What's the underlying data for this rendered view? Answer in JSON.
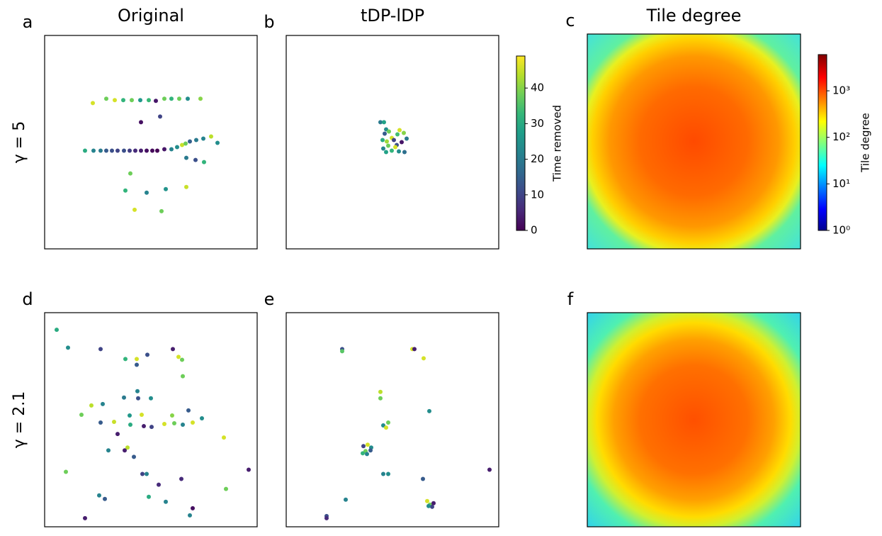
{
  "chart_data": [
    {
      "type": "scatter",
      "panel": "a",
      "title": "Original",
      "ylabel": "γ = 5",
      "xlim": [
        0,
        300
      ],
      "ylim": [
        0,
        300
      ],
      "x": [
        68,
        87,
        99,
        111,
        123,
        135,
        147,
        157,
        169,
        179,
        190,
        202,
        220,
        163,
        136,
        57,
        69,
        79,
        87,
        95,
        103,
        112,
        120,
        128,
        136,
        144,
        152,
        159,
        169,
        179,
        187,
        194,
        199,
        205,
        214,
        224,
        235,
        244,
        200,
        213,
        225,
        121,
        114,
        144,
        171,
        200,
        127,
        165
      ],
      "y": [
        205,
        211,
        209,
        209,
        209,
        209,
        209,
        208,
        211,
        211,
        211,
        211,
        211,
        186,
        178,
        138,
        138,
        138,
        138,
        138,
        138,
        138,
        138,
        138,
        138,
        138,
        138,
        138,
        140,
        140,
        143,
        146,
        148,
        151,
        153,
        155,
        158,
        149,
        128,
        125,
        122,
        106,
        82,
        79,
        84,
        87,
        55,
        53
      ],
      "c": [
        46,
        38,
        46,
        32,
        38,
        26,
        33,
        3,
        38,
        32,
        38,
        24,
        40,
        10,
        2,
        30,
        22,
        20,
        14,
        12,
        10,
        12,
        9,
        6,
        4,
        2,
        1,
        0,
        3,
        22,
        24,
        45,
        38,
        15,
        20,
        22,
        44,
        24,
        20,
        12,
        32,
        38,
        32,
        22,
        25,
        45,
        46,
        38
      ]
    },
    {
      "type": "scatter",
      "panel": "b",
      "title": "tDP-lDP",
      "xlim": [
        0,
        300
      ],
      "ylim": [
        0,
        300
      ],
      "x": [
        133,
        138,
        141,
        139,
        145,
        149,
        136,
        142,
        152,
        157,
        160,
        166,
        170,
        163,
        156,
        144,
        137,
        149,
        159,
        167,
        141,
        154
      ],
      "y": [
        178,
        178,
        168,
        162,
        165,
        156,
        153,
        151,
        153,
        161,
        167,
        163,
        155,
        150,
        146,
        145,
        141,
        138,
        137,
        136,
        136,
        143
      ],
      "c": [
        20,
        28,
        24,
        14,
        38,
        46,
        30,
        42,
        10,
        34,
        46,
        40,
        20,
        3,
        12,
        38,
        22,
        32,
        24,
        18,
        28,
        46
      ],
      "colorbar": {
        "label": "Time removed",
        "lim": [
          0,
          49
        ],
        "ticks": [
          0,
          10,
          20,
          30,
          40
        ]
      }
    },
    {
      "type": "heatmap",
      "panel": "c",
      "title": "Tile degree",
      "colorbar": {
        "label": "Tile degree",
        "log": true,
        "lim": [
          1,
          6000
        ],
        "ticks": [
          {
            "value": 1,
            "label": "10⁰"
          },
          {
            "value": 10,
            "label": "10¹"
          },
          {
            "value": 100,
            "label": "10²"
          },
          {
            "value": 1000,
            "label": "10³"
          }
        ]
      }
    },
    {
      "type": "scatter",
      "panel": "d",
      "ylabel": "γ = 2.1",
      "xlim": [
        0,
        300
      ],
      "ylim": [
        0,
        300
      ],
      "x": [
        17,
        33,
        79,
        145,
        181,
        189,
        194,
        114,
        130,
        130,
        195,
        131,
        112,
        132,
        150,
        66,
        82,
        52,
        203,
        120,
        137,
        180,
        98,
        79,
        121,
        140,
        151,
        169,
        183,
        195,
        209,
        222,
        103,
        253,
        117,
        113,
        90,
        126,
        138,
        144,
        30,
        193,
        161,
        288,
        256,
        147,
        77,
        85,
        171,
        209,
        205,
        57
      ],
      "y": [
        276,
        251,
        249,
        241,
        249,
        238,
        234,
        235,
        235,
        227,
        211,
        190,
        181,
        180,
        180,
        170,
        172,
        157,
        163,
        156,
        157,
        156,
        147,
        146,
        143,
        141,
        140,
        144,
        145,
        143,
        146,
        152,
        130,
        125,
        111,
        107,
        107,
        98,
        74,
        74,
        77,
        67,
        59,
        80,
        53,
        42,
        44,
        39,
        35,
        26,
        16,
        12
      ],
      "c": [
        30,
        24,
        10,
        12,
        4,
        46,
        38,
        32,
        46,
        14,
        38,
        22,
        20,
        12,
        24,
        44,
        22,
        38,
        14,
        26,
        46,
        40,
        45,
        14,
        30,
        4,
        10,
        46,
        38,
        22,
        46,
        24,
        4,
        46,
        44,
        4,
        22,
        14,
        10,
        22,
        38,
        6,
        6,
        4,
        38,
        30,
        22,
        14,
        22,
        2,
        22,
        4
      ]
    },
    {
      "type": "scatter",
      "panel": "e",
      "xlim": [
        0,
        300
      ],
      "ylim": [
        0,
        300
      ],
      "x": [
        79,
        79,
        178,
        181,
        194,
        133,
        133,
        202,
        144,
        137,
        141,
        109,
        115,
        120,
        112,
        108,
        114,
        119,
        137,
        144,
        193,
        287,
        84,
        199,
        203,
        206,
        208,
        201,
        57,
        57
      ],
      "y": [
        249,
        246,
        249,
        249,
        236,
        189,
        180,
        162,
        146,
        142,
        139,
        113,
        115,
        111,
        106,
        103,
        102,
        107,
        74,
        74,
        67,
        80,
        38,
        36,
        31,
        28,
        33,
        29,
        15,
        12
      ],
      "c": [
        12,
        36,
        46,
        4,
        46,
        44,
        38,
        24,
        38,
        24,
        46,
        10,
        46,
        24,
        38,
        32,
        22,
        14,
        22,
        24,
        14,
        4,
        22,
        46,
        38,
        10,
        4,
        24,
        12,
        6
      ]
    },
    {
      "type": "heatmap",
      "panel": "f"
    }
  ]
}
